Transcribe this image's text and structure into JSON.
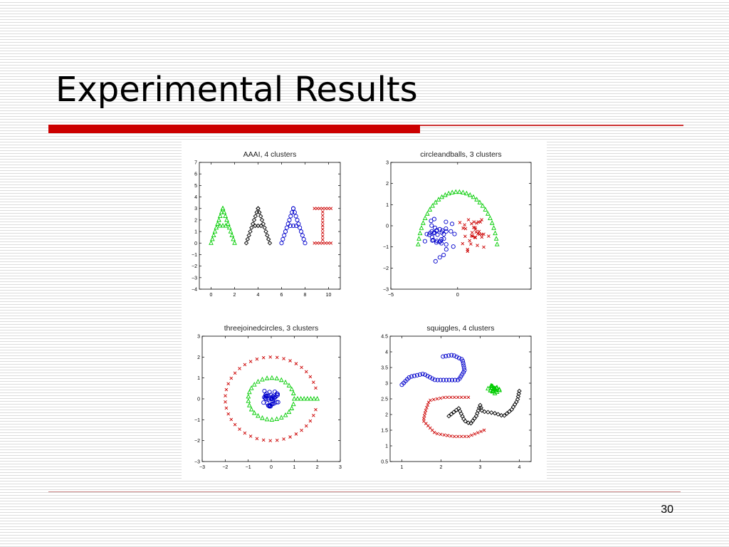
{
  "slide": {
    "title": "Experimental Results",
    "page_number": "30"
  },
  "colors": {
    "accent_bar": "#cc0000",
    "green": "#00cc00",
    "black": "#000000",
    "blue": "#0000cc",
    "red": "#cc0000"
  },
  "chart_data": [
    {
      "type": "scatter",
      "title": "AAAI, 4 clusters",
      "xlim": [
        -1,
        11
      ],
      "ylim": [
        -4,
        7
      ],
      "xticks": [
        0,
        2,
        4,
        6,
        8,
        10
      ],
      "yticks": [
        -4,
        -3,
        -2,
        -1,
        0,
        1,
        2,
        3,
        4,
        5,
        6,
        7
      ],
      "series": [
        {
          "color": "green",
          "marker": "triangle",
          "shape": {
            "kind": "letterA",
            "base_x": 0,
            "apex_x": 1,
            "right_x": 2,
            "bottom": 0,
            "top": 3,
            "bar_y": 1.5
          }
        },
        {
          "color": "black",
          "marker": "diamond",
          "shape": {
            "kind": "letterA",
            "base_x": 3,
            "apex_x": 4,
            "right_x": 5,
            "bottom": 0,
            "top": 3,
            "bar_y": 1.5
          }
        },
        {
          "color": "blue",
          "marker": "circle",
          "shape": {
            "kind": "letterA",
            "base_x": 6,
            "apex_x": 7,
            "right_x": 8,
            "bottom": 0,
            "top": 3,
            "bar_y": 1.5
          }
        },
        {
          "color": "red",
          "marker": "x",
          "shape": {
            "kind": "letterI",
            "center_x": 9.5,
            "half_width": 0.7,
            "bottom": 0,
            "top": 3
          }
        }
      ]
    },
    {
      "type": "scatter",
      "title": "circleandballs, 3 clusters",
      "xlim": [
        -5,
        5.5
      ],
      "ylim": [
        -3,
        3
      ],
      "xticks": [
        -5,
        0
      ],
      "yticks": [
        -3,
        -2,
        -1,
        0,
        1,
        2,
        3
      ],
      "series": [
        {
          "color": "green",
          "marker": "triangle",
          "shape": {
            "kind": "arc",
            "cx": 0,
            "cy": -1.4,
            "r": 3,
            "a0": 10,
            "a1": 170,
            "n": 32
          }
        },
        {
          "color": "blue",
          "marker": "circle",
          "shape": {
            "kind": "blob",
            "cx": -1.5,
            "cy": -0.5,
            "sx": 0.6,
            "sy": 0.55,
            "n": 40
          }
        },
        {
          "color": "red",
          "marker": "x",
          "shape": {
            "kind": "blob",
            "cx": 1.3,
            "cy": -0.5,
            "sx": 0.6,
            "sy": 0.6,
            "n": 35
          }
        }
      ]
    },
    {
      "type": "scatter",
      "title": "threejoinedcircles, 3 clusters",
      "xlim": [
        -3,
        3
      ],
      "ylim": [
        -3,
        3
      ],
      "xticks": [
        -3,
        -2,
        -1,
        0,
        1,
        2,
        3
      ],
      "yticks": [
        -3,
        -2,
        -1,
        0,
        1,
        2,
        3
      ],
      "series": [
        {
          "color": "red",
          "marker": "x",
          "shape": {
            "kind": "arc",
            "cx": 0,
            "cy": 0,
            "r": 2,
            "a0": 15,
            "a1": 345,
            "n": 40
          }
        },
        {
          "color": "green",
          "marker": "triangle",
          "shape": {
            "kind": "ringtail",
            "cx": 0,
            "cy": 0,
            "r": 1,
            "a0": 15,
            "a1": 345,
            "n": 28,
            "tail_x0": 1,
            "tail_x1": 2,
            "tail_n": 8
          }
        },
        {
          "color": "blue",
          "marker": "circle",
          "shape": {
            "kind": "blob",
            "cx": 0,
            "cy": 0,
            "sx": 0.22,
            "sy": 0.22,
            "n": 40
          }
        }
      ]
    },
    {
      "type": "scatter",
      "title": "squiggles, 4 clusters",
      "xlim": [
        0.7,
        4.3
      ],
      "ylim": [
        0.5,
        4.5
      ],
      "xticks": [
        1,
        2,
        3,
        4
      ],
      "yticks": [
        0.5,
        1,
        1.5,
        2,
        2.5,
        3,
        3.5,
        4,
        4.5
      ],
      "series": [
        {
          "color": "blue",
          "marker": "circle",
          "shape": {
            "kind": "path",
            "points": [
              [
                1,
                2.95
              ],
              [
                1.2,
                3.2
              ],
              [
                1.55,
                3.3
              ],
              [
                1.85,
                3.1
              ],
              [
                2.15,
                3.1
              ],
              [
                2.45,
                3.1
              ],
              [
                2.6,
                3.4
              ],
              [
                2.55,
                3.75
              ],
              [
                2.3,
                3.9
              ],
              [
                2.05,
                3.85
              ]
            ],
            "n": 40
          }
        },
        {
          "color": "green",
          "marker": "triangle",
          "shape": {
            "kind": "blob",
            "cx": 3.35,
            "cy": 2.8,
            "sx": 0.1,
            "sy": 0.07,
            "n": 24
          }
        },
        {
          "color": "red",
          "marker": "x",
          "shape": {
            "kind": "path",
            "points": [
              [
                2.7,
                2.55
              ],
              [
                2.1,
                2.55
              ],
              [
                1.7,
                2.45
              ],
              [
                1.6,
                2.1
              ],
              [
                1.55,
                1.8
              ],
              [
                1.85,
                1.4
              ],
              [
                2.3,
                1.3
              ],
              [
                2.7,
                1.3
              ],
              [
                2.9,
                1.4
              ],
              [
                3.1,
                1.5
              ]
            ],
            "n": 40
          }
        },
        {
          "color": "black",
          "marker": "diamond",
          "shape": {
            "kind": "path",
            "points": [
              [
                2.2,
                1.95
              ],
              [
                2.45,
                2.2
              ],
              [
                2.6,
                1.8
              ],
              [
                2.75,
                1.7
              ],
              [
                2.9,
                1.95
              ],
              [
                3,
                2.3
              ],
              [
                3.05,
                2.1
              ],
              [
                3.35,
                2.05
              ],
              [
                3.6,
                1.95
              ],
              [
                3.8,
                2.15
              ],
              [
                3.95,
                2.45
              ],
              [
                4,
                2.75
              ]
            ],
            "n": 38
          }
        }
      ]
    }
  ]
}
